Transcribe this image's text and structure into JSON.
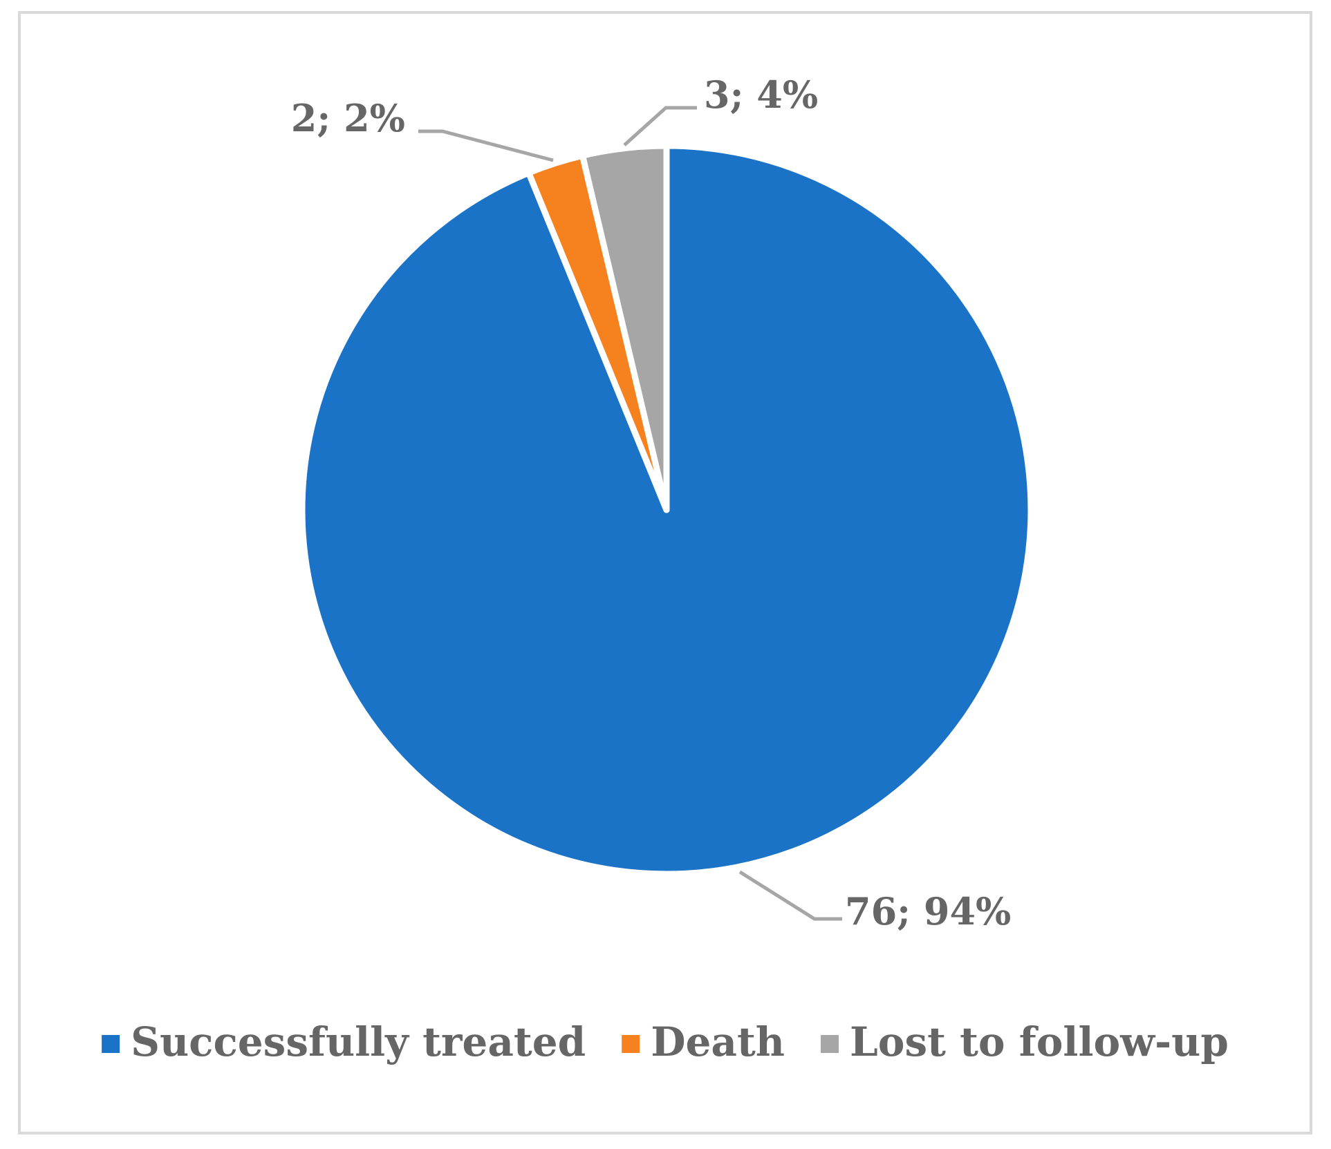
{
  "chart_data": {
    "type": "pie",
    "title": "",
    "slices": [
      {
        "label": "Successfully treated",
        "value": 76,
        "percent": 94,
        "color": "#1a73c7",
        "data_label": "76; 94%"
      },
      {
        "label": "Death",
        "value": 2,
        "percent": 2,
        "color": "#f5821f",
        "data_label": "2; 2%"
      },
      {
        "label": "Lost to follow-up",
        "value": 3,
        "percent": 4,
        "color": "#a6a6a6",
        "data_label": "3; 4%"
      }
    ],
    "start_angle": "12 o'clock",
    "direction": "clockwise",
    "legend_position": "bottom",
    "label_color": "#666666",
    "leader_line_color": "#a6a6a6",
    "border_color": "#d9d9d9"
  }
}
